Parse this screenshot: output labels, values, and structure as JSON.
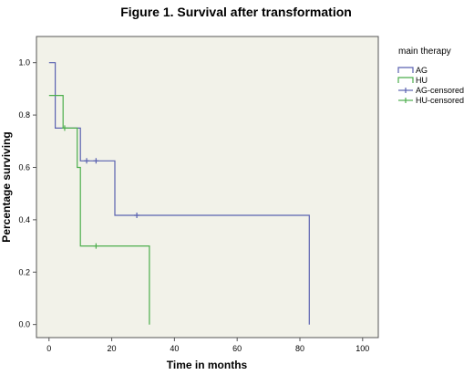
{
  "chart_data": {
    "type": "line",
    "subtype": "kaplan-meier-step",
    "title": "Figure 1. Survival after transformation",
    "xlabel": "Time in months",
    "ylabel": "Percentage surviving",
    "xlim": [
      -4,
      105
    ],
    "ylim": [
      -0.05,
      1.1
    ],
    "xticks": [
      0,
      20,
      40,
      60,
      80,
      100
    ],
    "yticks": [
      0.0,
      0.2,
      0.4,
      0.6,
      0.8,
      1.0
    ],
    "ytick_labels": [
      "0.0",
      "0.2",
      "0.4",
      "0.6",
      "0.8",
      "1.0"
    ],
    "grid": false,
    "plot_background": "#f2f2e9",
    "legend": {
      "title": "main therapy",
      "placement": "right",
      "entries": [
        "AG",
        "HU",
        "AG-censored",
        "HU-censored"
      ]
    },
    "series": [
      {
        "name": "AG",
        "color": "#5a62b0",
        "x": [
          0,
          2,
          2,
          10,
          10,
          21,
          21,
          83,
          83
        ],
        "y": [
          1.0,
          1.0,
          0.75,
          0.75,
          0.625,
          0.625,
          0.417,
          0.417,
          0.0
        ]
      },
      {
        "name": "HU",
        "color": "#4cae4c",
        "x": [
          0,
          4.5,
          4.5,
          9,
          9,
          10,
          10,
          32,
          32
        ],
        "y": [
          0.875,
          0.875,
          0.75,
          0.75,
          0.6,
          0.6,
          0.3,
          0.3,
          0.0
        ]
      }
    ],
    "censored": [
      {
        "name": "AG-censored",
        "color": "#5a62b0",
        "x": [
          12,
          15,
          28
        ],
        "y": [
          0.625,
          0.625,
          0.417
        ]
      },
      {
        "name": "HU-censored",
        "color": "#4cae4c",
        "x": [
          5,
          15
        ],
        "y": [
          0.75,
          0.3
        ]
      }
    ]
  }
}
